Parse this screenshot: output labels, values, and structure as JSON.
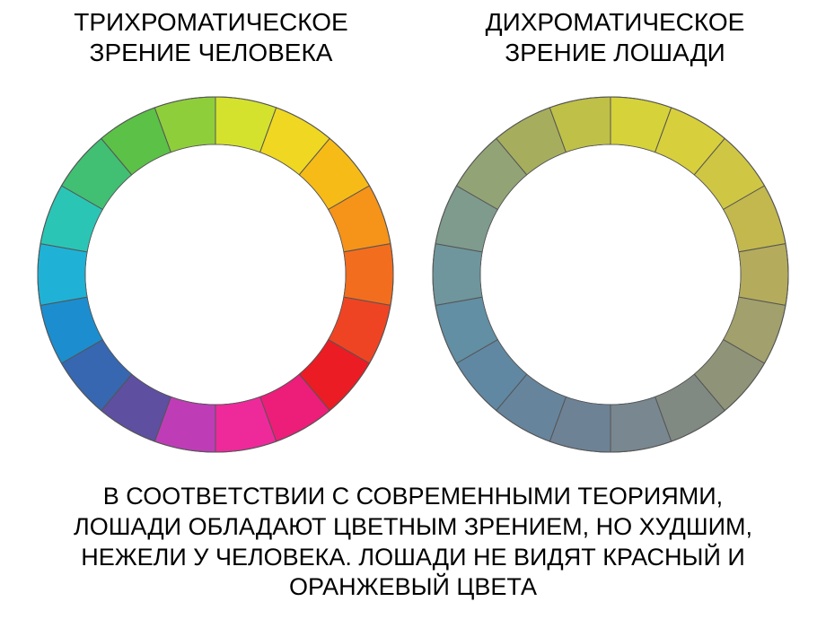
{
  "left": {
    "title": "ТРИХРОМАТИЧЕСКОЕ\nЗРЕНИЕ ЧЕЛОВЕКА",
    "wheel": {
      "type": "color-wheel",
      "segments": 18,
      "outer_radius": 198,
      "inner_radius": 145,
      "center_fill": "#ffffff",
      "divider_color": "#555555",
      "divider_width": 1,
      "start_angle_deg": -90,
      "colors": [
        "#d4e22e",
        "#f0d721",
        "#f7bb17",
        "#f69319",
        "#f36d1f",
        "#ef4424",
        "#ec1c24",
        "#ec1e79",
        "#ee2a9b",
        "#be3db7",
        "#5e4fa1",
        "#3767b1",
        "#1c8ecf",
        "#1fb2d6",
        "#2bc5b5",
        "#41bf73",
        "#5cc147",
        "#8fce3b"
      ]
    }
  },
  "right": {
    "title": "ДИХРОМАТИЧЕСКОЕ\nЗРЕНИЕ ЛОШАДИ",
    "wheel": {
      "type": "color-wheel",
      "segments": 18,
      "outer_radius": 198,
      "inner_radius": 145,
      "center_fill": "#ffffff",
      "divider_color": "#555555",
      "divider_width": 1,
      "start_angle_deg": -90,
      "colors": [
        "#d6d23a",
        "#d8cf3c",
        "#cfc644",
        "#c2b84e",
        "#b4ac5c",
        "#a2a06c",
        "#8f9378",
        "#818a82",
        "#788790",
        "#6e8296",
        "#66859d",
        "#6188a3",
        "#628fa3",
        "#6f969c",
        "#7e9b8e",
        "#92a475",
        "#a6ae5d",
        "#bfc047"
      ]
    }
  },
  "caption": "В СООТВЕТСТВИИ С СОВРЕМЕННЫМИ ТЕОРИЯМИ,\nЛОШАДИ ОБЛАДАЮТ ЦВЕТНЫМ ЗРЕНИЕМ, НО ХУДШИМ,\nНЕЖЕЛИ У ЧЕЛОВЕКА. ЛОШАДИ НЕ ВИДЯТ КРАСНЫЙ  И\nОРАНЖЕВЫЙ ЦВЕТА",
  "text_color": "#000000",
  "background_color": "#ffffff",
  "title_fontsize": 28,
  "caption_fontsize": 27
}
